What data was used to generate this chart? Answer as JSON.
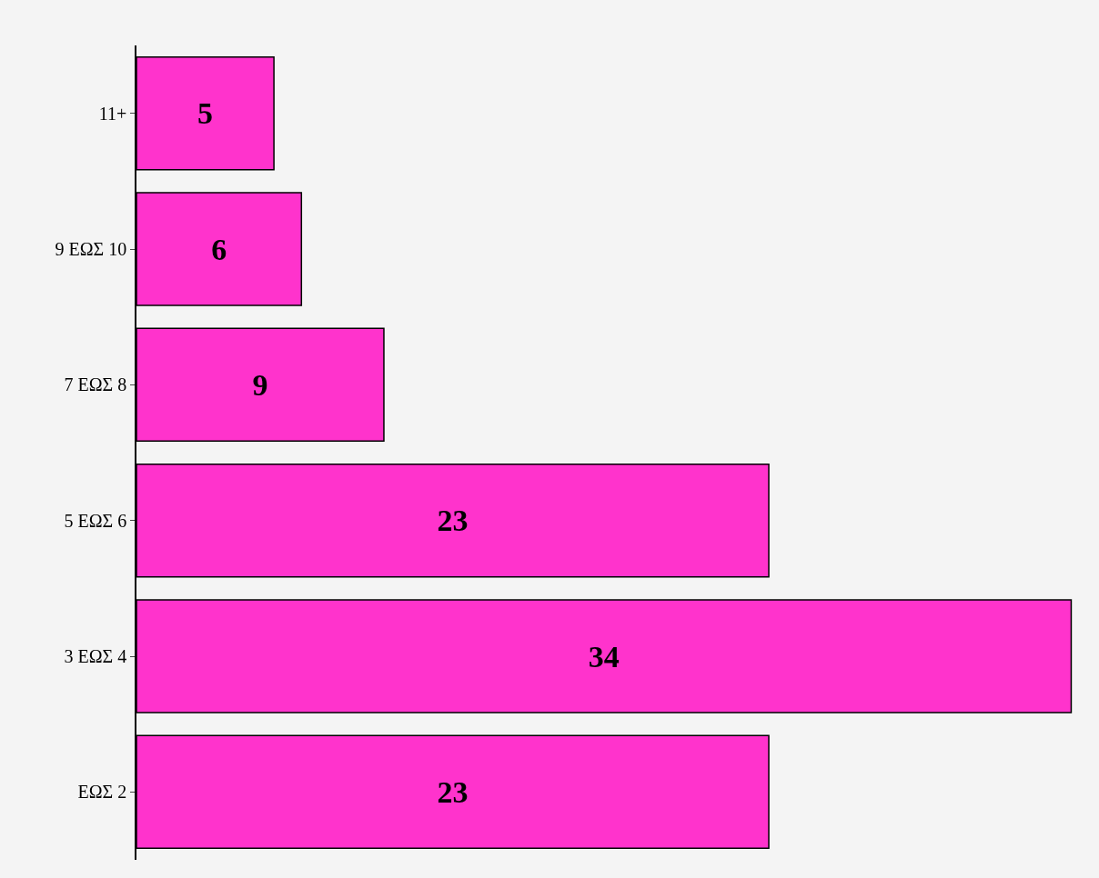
{
  "chart_data": {
    "type": "bar",
    "orientation": "horizontal",
    "categories": [
      "11+",
      "9 ΕΩΣ 10",
      "7 ΕΩΣ 8",
      "5 ΕΩΣ 6",
      "3 ΕΩΣ 4",
      "ΕΩΣ 2"
    ],
    "values": [
      5,
      6,
      9,
      23,
      34,
      23
    ],
    "color": "#ff33cc",
    "data_labels": true,
    "tick_labels": "y",
    "grid": false,
    "legend": false
  }
}
